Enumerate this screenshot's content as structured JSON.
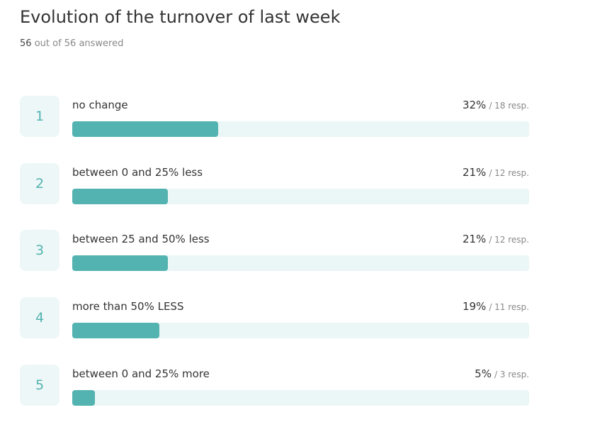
{
  "chart_data": {
    "type": "bar",
    "orientation": "horizontal",
    "title": "Evolution of the turnover of last week",
    "answered_count": "56",
    "answered_text": "out of 56 answered",
    "ranks": [
      1,
      2,
      3,
      4,
      5
    ],
    "categories": [
      "no change",
      "between 0 and 25% less",
      "between 25 and 50% less",
      "more than 50% LESS",
      "between 0 and 25% more"
    ],
    "values": [
      32,
      21,
      21,
      19,
      5
    ],
    "value_labels": [
      "32%",
      "21%",
      "21%",
      "19%",
      "5%"
    ],
    "response_labels": [
      "/ 18 resp.",
      "/ 12 resp.",
      "/ 12 resp.",
      "/ 11 resp.",
      "/ 3 resp."
    ],
    "color": "#52b3b0",
    "track_color": "#ebf6f6",
    "xlim": [
      0,
      100
    ]
  }
}
